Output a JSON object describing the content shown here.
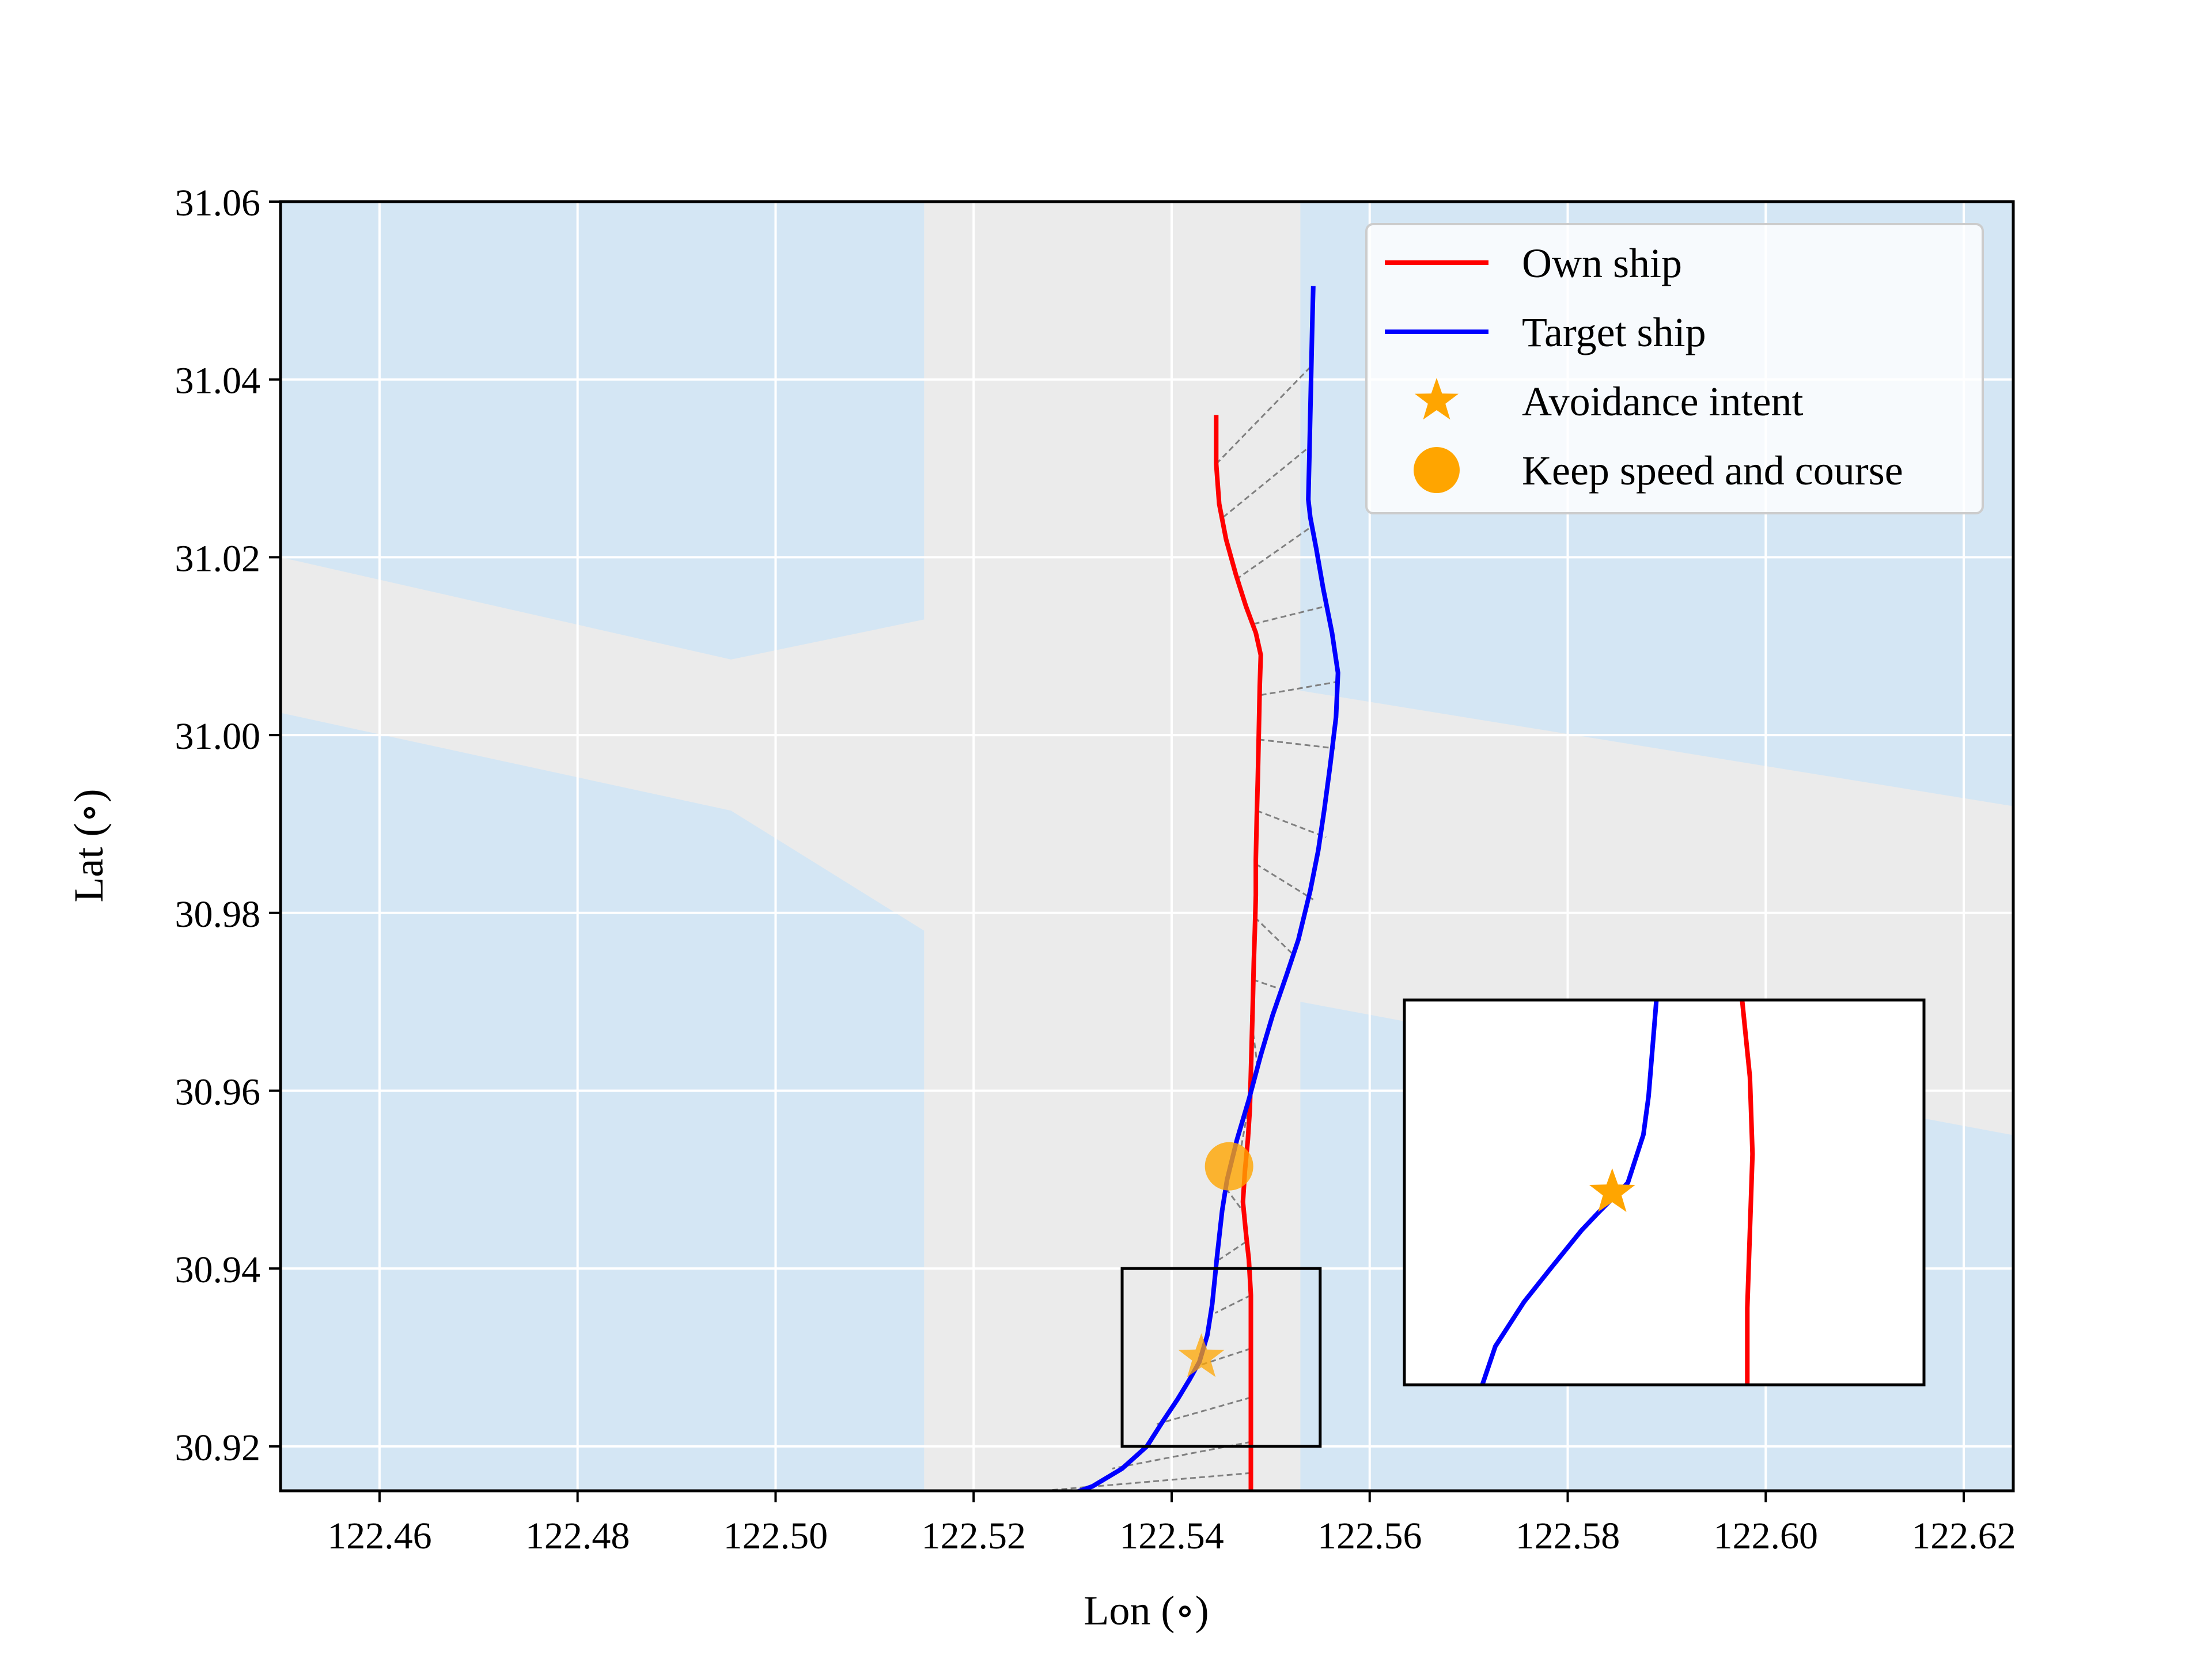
{
  "chart_data": {
    "type": "line",
    "xlabel": "Lon (∘)",
    "ylabel": "Lat (∘)",
    "xlim": [
      122.45,
      122.625
    ],
    "ylim": [
      30.915,
      31.06
    ],
    "x_ticks": [
      122.46,
      122.48,
      122.5,
      122.52,
      122.54,
      122.56,
      122.58,
      122.6,
      122.62
    ],
    "x_tick_labels": [
      "122.46",
      "122.48",
      "122.50",
      "122.52",
      "122.54",
      "122.56",
      "122.58",
      "122.60",
      "122.62"
    ],
    "y_ticks": [
      30.92,
      30.94,
      30.96,
      30.98,
      31.0,
      31.02,
      31.04,
      31.06
    ],
    "y_tick_labels": [
      "30.92",
      "30.94",
      "30.96",
      "30.98",
      "31.00",
      "31.02",
      "31.04",
      "31.06"
    ],
    "grid": true,
    "legend_position": "top-right",
    "background": {
      "water_color": "#d4e6f4",
      "channel_color": "#ebebeb",
      "channel_regions": [
        [
          [
            122.515,
            31.06
          ],
          [
            122.553,
            31.06
          ],
          [
            122.553,
            31.005
          ],
          [
            122.625,
            30.992
          ],
          [
            122.625,
            30.955
          ],
          [
            122.553,
            30.97
          ],
          [
            122.553,
            30.915
          ],
          [
            122.515,
            30.915
          ],
          [
            122.515,
            30.978
          ],
          [
            122.4955,
            30.9915
          ],
          [
            122.45,
            31.0025
          ],
          [
            122.45,
            31.02
          ],
          [
            122.4955,
            31.0085
          ],
          [
            122.515,
            31.013
          ]
        ]
      ]
    },
    "series": [
      {
        "name": "Own ship",
        "color": "#ff0000",
        "points": [
          [
            122.5445,
            31.036
          ],
          [
            122.5445,
            31.0305
          ],
          [
            122.5448,
            31.026
          ],
          [
            122.5455,
            31.022
          ],
          [
            122.5465,
            31.018
          ],
          [
            122.5475,
            31.0145
          ],
          [
            122.5485,
            31.0115
          ],
          [
            122.549,
            31.009
          ],
          [
            122.5489,
            31.0055
          ],
          [
            122.5488,
            31.0
          ],
          [
            122.5487,
            30.995
          ],
          [
            122.5486,
            30.991
          ],
          [
            122.5485,
            30.986
          ],
          [
            122.5485,
            30.982
          ],
          [
            122.5484,
            30.978
          ],
          [
            122.5483,
            30.9745
          ],
          [
            122.5482,
            30.97
          ],
          [
            122.5481,
            30.966
          ],
          [
            122.548,
            30.962
          ],
          [
            122.5479,
            30.958
          ],
          [
            122.5477,
            30.9545
          ],
          [
            122.5474,
            30.951
          ],
          [
            122.5472,
            30.9475
          ],
          [
            122.5475,
            30.944
          ],
          [
            122.5478,
            30.941
          ],
          [
            122.548,
            30.937
          ],
          [
            122.548,
            30.933
          ],
          [
            122.548,
            30.929
          ],
          [
            122.548,
            30.925
          ],
          [
            122.548,
            30.921
          ],
          [
            122.548,
            30.918
          ],
          [
            122.548,
            30.915
          ]
        ]
      },
      {
        "name": "Target ship",
        "color": "#0000ff",
        "points": [
          [
            122.5543,
            31.0505
          ],
          [
            122.5542,
            31.046
          ],
          [
            122.5541,
            31.041
          ],
          [
            122.554,
            31.036
          ],
          [
            122.5539,
            31.031
          ],
          [
            122.5538,
            31.0265
          ],
          [
            122.554,
            31.0245
          ],
          [
            122.5546,
            31.021
          ],
          [
            122.5553,
            31.0165
          ],
          [
            122.5562,
            31.0115
          ],
          [
            122.5568,
            31.007
          ],
          [
            122.5566,
            31.002
          ],
          [
            122.556,
            30.9965
          ],
          [
            122.5554,
            30.9915
          ],
          [
            122.5548,
            30.987
          ],
          [
            122.554,
            30.9825
          ],
          [
            122.5528,
            30.977
          ],
          [
            122.5516,
            30.973
          ],
          [
            122.5502,
            30.9685
          ],
          [
            122.549,
            30.964
          ],
          [
            122.5478,
            30.959
          ],
          [
            122.5466,
            30.9545
          ],
          [
            122.5456,
            30.95
          ],
          [
            122.5451,
            30.9465
          ],
          [
            122.5446,
            30.9415
          ],
          [
            122.5441,
            30.936
          ],
          [
            122.5436,
            30.9325
          ],
          [
            122.5428,
            30.9295
          ],
          [
            122.5418,
            30.9275
          ],
          [
            122.5406,
            30.9253
          ],
          [
            122.5391,
            30.9228
          ],
          [
            122.5375,
            30.92
          ],
          [
            122.535,
            30.9175
          ],
          [
            122.532,
            30.9155
          ],
          [
            122.53,
            30.9147
          ]
        ]
      }
    ],
    "connectors": [
      [
        [
          122.5445,
          31.0305
        ],
        [
          122.5541,
          31.0415
        ]
      ],
      [
        [
          122.5452,
          31.0245
        ],
        [
          122.554,
          31.0325
        ]
      ],
      [
        [
          122.5465,
          31.0175
        ],
        [
          122.5542,
          31.0235
        ]
      ],
      [
        [
          122.5483,
          31.0125
        ],
        [
          122.5556,
          31.0145
        ]
      ],
      [
        [
          122.549,
          31.0045
        ],
        [
          122.5568,
          31.006
        ]
      ],
      [
        [
          122.5488,
          30.9995
        ],
        [
          122.5565,
          30.9985
        ]
      ],
      [
        [
          122.5486,
          30.9915
        ],
        [
          122.5556,
          30.9885
        ]
      ],
      [
        [
          122.5485,
          30.9855
        ],
        [
          122.5543,
          30.9815
        ]
      ],
      [
        [
          122.5484,
          30.9795
        ],
        [
          122.5521,
          30.9755
        ]
      ],
      [
        [
          122.5482,
          30.9725
        ],
        [
          122.5508,
          30.9715
        ]
      ],
      [
        [
          122.548,
          30.9685
        ],
        [
          122.5487,
          30.9625
        ]
      ],
      [
        [
          122.5478,
          30.9585
        ],
        [
          122.547,
          30.9535
        ]
      ],
      [
        [
          122.5475,
          30.946
        ],
        [
          122.5455,
          30.949
        ]
      ],
      [
        [
          122.5475,
          30.943
        ],
        [
          122.5448,
          30.941
        ]
      ],
      [
        [
          122.548,
          30.937
        ],
        [
          122.5444,
          30.935
        ]
      ],
      [
        [
          122.548,
          30.931
        ],
        [
          122.5425,
          30.929
        ]
      ],
      [
        [
          122.548,
          30.9255
        ],
        [
          122.5385,
          30.9225
        ]
      ],
      [
        [
          122.548,
          30.9205
        ],
        [
          122.534,
          30.9175
        ]
      ],
      [
        [
          122.548,
          30.917
        ],
        [
          122.527,
          30.915
        ]
      ]
    ],
    "markers": [
      {
        "name": "Avoidance intent",
        "shape": "star",
        "color": "#ffa500",
        "x": 122.543,
        "y": 30.93
      },
      {
        "name": "Keep speed and course",
        "shape": "circle",
        "color": "#ffa500",
        "x": 122.5458,
        "y": 30.9515
      }
    ],
    "zoom_box": {
      "x": [
        122.535,
        122.555
      ],
      "y": [
        30.92,
        30.94
      ]
    },
    "inset": {
      "x_range": [
        122.535,
        122.555
      ],
      "y_range": [
        30.92,
        30.94
      ],
      "series_points": {
        "Own ship": [
          [
            122.548,
            30.94
          ],
          [
            122.5483,
            30.936
          ],
          [
            122.5484,
            30.932
          ],
          [
            122.5483,
            30.928
          ],
          [
            122.5482,
            30.924
          ],
          [
            122.5482,
            30.92
          ]
        ],
        "Target ship": [
          [
            122.5447,
            30.94
          ],
          [
            122.5444,
            30.935
          ],
          [
            122.5442,
            30.933
          ],
          [
            122.5436,
            30.9305
          ],
          [
            122.5425,
            30.929
          ],
          [
            122.5418,
            30.928
          ],
          [
            122.5406,
            30.926
          ],
          [
            122.5396,
            30.9243
          ],
          [
            122.5385,
            30.922
          ],
          [
            122.538,
            30.92
          ]
        ]
      },
      "star": {
        "x": 122.543,
        "y": 30.93
      }
    }
  }
}
